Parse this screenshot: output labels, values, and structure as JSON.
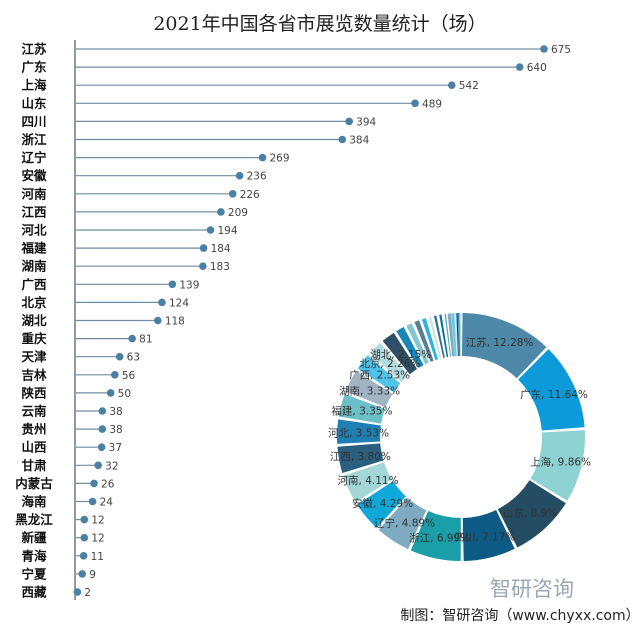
{
  "title": "2021年中国各省市展览数量统计（场）",
  "source": "制图：智研咨询（www.chyxx.com）",
  "watermark": "智研咨询",
  "colors": {
    "line": "#6f8ea3",
    "dot": "#4a80a3",
    "donut": [
      "#4d88a8",
      "#0c9bd8",
      "#8fd2d4",
      "#244c63",
      "#0d5a85",
      "#1a9ea8",
      "#7eaac2",
      "#0fa8d8",
      "#a3d7d7",
      "#2b5f80",
      "#1f7fb2",
      "#6cc0c8",
      "#a0b4c4",
      "#4fc3ea",
      "#b4dde0",
      "#2f4f66",
      "#1a86b8",
      "#82c8cc",
      "#5c7d93",
      "#2bb2e0",
      "#c6e6e8",
      "#3b6987",
      "#0b6fa0",
      "#57b9c0",
      "#8fa7ba",
      "#66cdef",
      "#d0eceb",
      "#26465c",
      "#137ab0",
      "#9dd4d6",
      "#3d5d73"
    ]
  },
  "chart_data": [
    {
      "type": "lollipop",
      "title": "2021年中国各省市展览数量统计（场）",
      "categories": [
        "江苏",
        "广东",
        "上海",
        "山东",
        "四川",
        "浙江",
        "辽宁",
        "安徽",
        "河南",
        "江西",
        "河北",
        "福建",
        "湖南",
        "广西",
        "北京",
        "湖北",
        "重庆",
        "天津",
        "吉林",
        "陕西",
        "云南",
        "贵州",
        "山西",
        "甘肃",
        "内蒙古",
        "海南",
        "黑龙江",
        "新疆",
        "青海",
        "宁夏",
        "西藏"
      ],
      "values": [
        675,
        640,
        542,
        489,
        394,
        384,
        269,
        236,
        226,
        209,
        194,
        184,
        183,
        139,
        124,
        118,
        81,
        63,
        56,
        50,
        38,
        38,
        37,
        32,
        26,
        24,
        12,
        12,
        11,
        9,
        2
      ],
      "xlim": [
        0,
        700
      ],
      "grid": false
    },
    {
      "type": "pie",
      "subtype": "donut",
      "slices": [
        {
          "label": "江苏",
          "pct": "12.28%",
          "value": 675
        },
        {
          "label": "广东",
          "pct": "11.64%",
          "value": 640
        },
        {
          "label": "上海",
          "pct": "9.86%",
          "value": 542
        },
        {
          "label": "山东",
          "pct": "8.9%",
          "value": 489
        },
        {
          "label": "四川",
          "pct": "7.17%",
          "value": 394
        },
        {
          "label": "浙江",
          "pct": "6.99%",
          "value": 384
        },
        {
          "label": "辽宁",
          "pct": "4.89%",
          "value": 269
        },
        {
          "label": "安徽",
          "pct": "4.29%",
          "value": 236
        },
        {
          "label": "河南",
          "pct": "4.11%",
          "value": 226
        },
        {
          "label": "江西",
          "pct": "3.80%",
          "value": 209
        },
        {
          "label": "河北",
          "pct": "3.53%",
          "value": 194
        },
        {
          "label": "福建",
          "pct": "3.35%",
          "value": 184
        },
        {
          "label": "湖南",
          "pct": "3.33%",
          "value": 183
        },
        {
          "label": "广西",
          "pct": "2.53%",
          "value": 139
        },
        {
          "label": "北京",
          "pct": "2.26%",
          "value": 124
        },
        {
          "label": "湖北",
          "pct": "2.15%",
          "value": 118
        },
        {
          "label": "重庆",
          "pct": "",
          "value": 81
        },
        {
          "label": "天津",
          "pct": "",
          "value": 63
        },
        {
          "label": "吉林",
          "pct": "",
          "value": 56
        },
        {
          "label": "陕西",
          "pct": "",
          "value": 50
        },
        {
          "label": "云南",
          "pct": "",
          "value": 38
        },
        {
          "label": "贵州",
          "pct": "",
          "value": 38
        },
        {
          "label": "山西",
          "pct": "",
          "value": 37
        },
        {
          "label": "甘肃",
          "pct": "",
          "value": 32
        },
        {
          "label": "内蒙古",
          "pct": "",
          "value": 26
        },
        {
          "label": "海南",
          "pct": "",
          "value": 24
        },
        {
          "label": "黑龙江",
          "pct": "",
          "value": 12
        },
        {
          "label": "新疆",
          "pct": "",
          "value": 12
        },
        {
          "label": "青海",
          "pct": "",
          "value": 11
        },
        {
          "label": "宁夏",
          "pct": "",
          "value": 9
        },
        {
          "label": "西藏",
          "pct": "",
          "value": 2
        }
      ]
    }
  ]
}
